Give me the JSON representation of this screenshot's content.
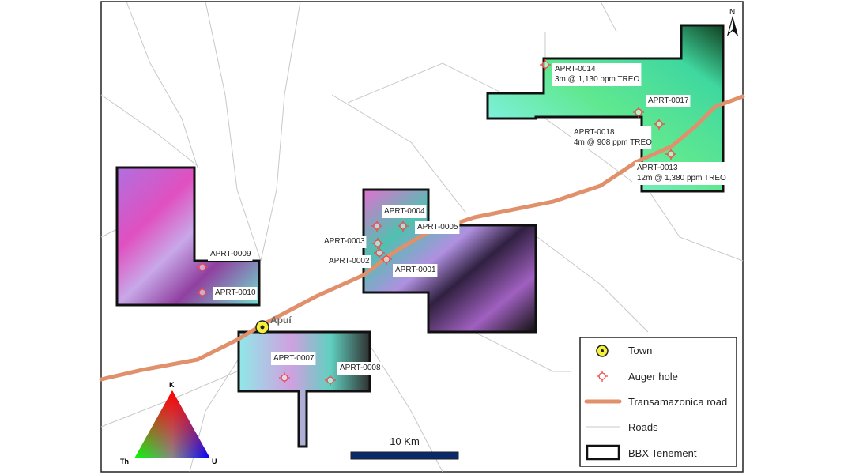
{
  "map": {
    "north_label": "N",
    "town": {
      "name": "Apuí"
    },
    "auger_holes": [
      {
        "id": "APRT-0014",
        "result": "3m @ 1,130 ppm TREO"
      },
      {
        "id": "APRT-0017",
        "result": ""
      },
      {
        "id": "APRT-0018",
        "result": "4m @ 908 ppm TREO"
      },
      {
        "id": "APRT-0013",
        "result": "12m @ 1,380 ppm TREO"
      },
      {
        "id": "APRT-0004",
        "result": ""
      },
      {
        "id": "APRT-0005",
        "result": ""
      },
      {
        "id": "APRT-0003",
        "result": ""
      },
      {
        "id": "APRT-0002",
        "result": ""
      },
      {
        "id": "APRT-0001",
        "result": ""
      },
      {
        "id": "APRT-0009",
        "result": ""
      },
      {
        "id": "APRT-0010",
        "result": ""
      },
      {
        "id": "APRT-0007",
        "result": ""
      },
      {
        "id": "APRT-0008",
        "result": ""
      }
    ],
    "scale_bar": "10 Km",
    "ternary": {
      "top": "K",
      "left": "Th",
      "right": "U"
    },
    "legend": [
      {
        "symbol": "town",
        "label": "Town"
      },
      {
        "symbol": "auger-hole",
        "label": "Auger hole"
      },
      {
        "symbol": "transamazonica-road",
        "label": "Transamazonica road"
      },
      {
        "symbol": "roads",
        "label": "Roads"
      },
      {
        "symbol": "tenement",
        "label": "BBX Tenement"
      }
    ],
    "colors": {
      "road": "#e0906a",
      "auger": "#f04848",
      "town": "#f5f03a",
      "scale": "#0b2a6b",
      "minor_road": "#c8c8c8"
    }
  }
}
